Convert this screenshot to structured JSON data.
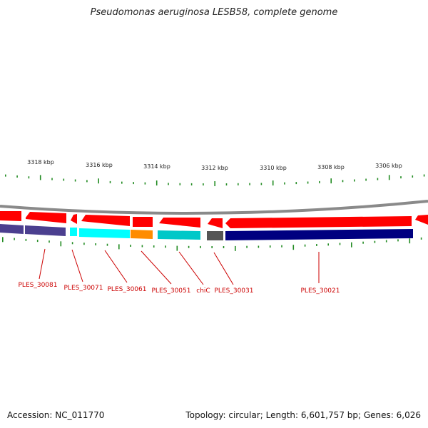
{
  "title": "Pseudomonas aeruginosa LESB58, complete genome",
  "footer": {
    "accession": "Accession: NC_011770",
    "summary": "Topology: circular; Length: 6,601,757 bp; Genes: 6,026"
  },
  "colors": {
    "forward_strand": "#ff0000",
    "reverse_strand": "#000080",
    "backbone": "#8a8a8a",
    "ticks": "#228b22",
    "labels": "#cc0000"
  },
  "scale_labels": [
    "3318 kbp",
    "3316 kbp",
    "3314 kbp",
    "3312 kbp",
    "3310 kbp",
    "3308 kbp",
    "3306 kbp"
  ],
  "gene_labels": [
    "PLES_30081",
    "PLES_30071",
    "PLES_30061",
    "PLES_30051",
    "chiC",
    "PLES_30031",
    "PLES_30021"
  ]
}
